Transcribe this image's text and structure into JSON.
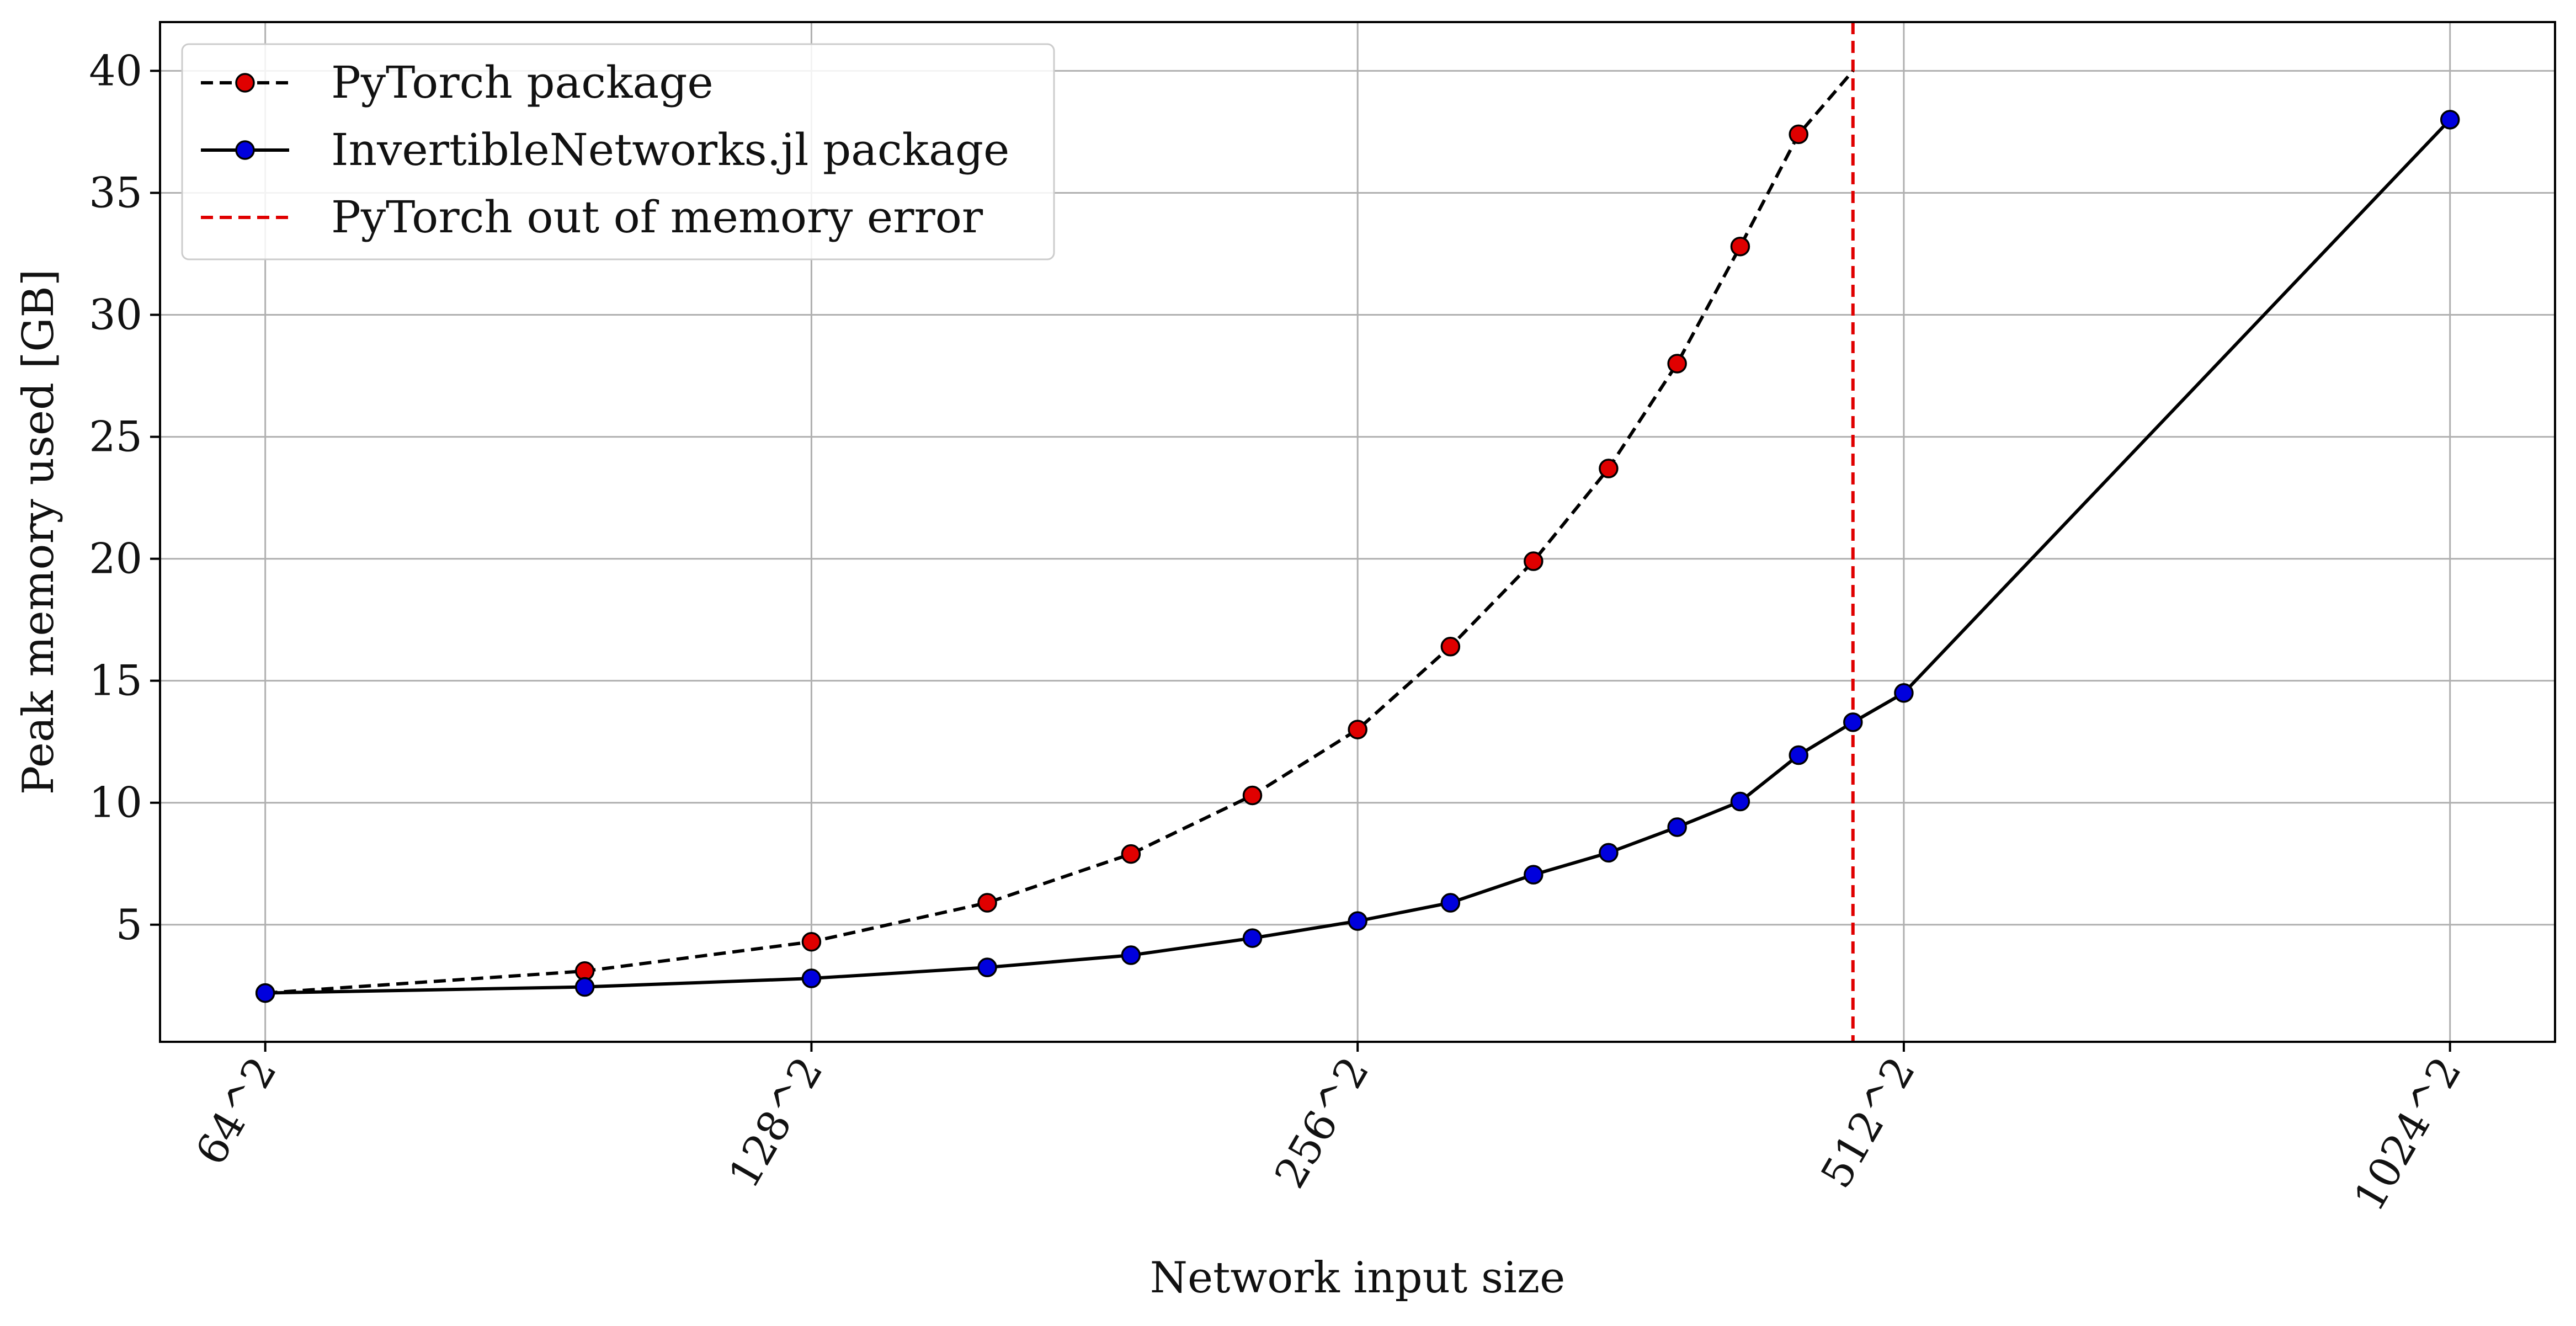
{
  "chart_data": {
    "type": "line",
    "title": "",
    "xlabel": "Network input size",
    "ylabel": "Peak memory used [GB]",
    "x_scale": "log2",
    "x_ticks": [
      {
        "value": 64,
        "label": "64^2"
      },
      {
        "value": 128,
        "label": "128^2"
      },
      {
        "value": 256,
        "label": "256^2"
      },
      {
        "value": 512,
        "label": "512^2"
      },
      {
        "value": 1024,
        "label": "1024^2"
      }
    ],
    "y_ticks": [
      5,
      10,
      15,
      20,
      25,
      30,
      35,
      40
    ],
    "ylim": [
      0.2,
      42
    ],
    "xlim": [
      56,
      1170
    ],
    "grid": true,
    "legend_position": "top-left",
    "series": [
      {
        "name": "PyTorch package",
        "line_style": "dashed",
        "line_color": "#000000",
        "marker_color": "#e00000",
        "points": [
          {
            "x": 64,
            "y": 2.2
          },
          {
            "x": 96,
            "y": 3.1
          },
          {
            "x": 128,
            "y": 4.3
          },
          {
            "x": 160,
            "y": 5.9
          },
          {
            "x": 192,
            "y": 7.9
          },
          {
            "x": 224,
            "y": 10.3
          },
          {
            "x": 256,
            "y": 13.0
          },
          {
            "x": 288,
            "y": 16.4
          },
          {
            "x": 320,
            "y": 19.9
          },
          {
            "x": 352,
            "y": 23.7
          },
          {
            "x": 384,
            "y": 28.0
          },
          {
            "x": 416,
            "y": 32.8
          },
          {
            "x": 448,
            "y": 37.4
          },
          {
            "x": 480,
            "y": 40.0,
            "marker": false
          }
        ]
      },
      {
        "name": "InvertibleNetworks.jl package",
        "line_style": "solid",
        "line_color": "#000000",
        "marker_color": "#0000dd",
        "points": [
          {
            "x": 64,
            "y": 2.2
          },
          {
            "x": 96,
            "y": 2.45
          },
          {
            "x": 128,
            "y": 2.8
          },
          {
            "x": 160,
            "y": 3.25
          },
          {
            "x": 192,
            "y": 3.75
          },
          {
            "x": 224,
            "y": 4.45
          },
          {
            "x": 256,
            "y": 5.15
          },
          {
            "x": 288,
            "y": 5.9
          },
          {
            "x": 320,
            "y": 7.05
          },
          {
            "x": 352,
            "y": 7.95
          },
          {
            "x": 384,
            "y": 9.0
          },
          {
            "x": 416,
            "y": 10.05
          },
          {
            "x": 448,
            "y": 11.95
          },
          {
            "x": 480,
            "y": 13.3
          },
          {
            "x": 512,
            "y": 14.5
          },
          {
            "x": 1024,
            "y": 38.0
          }
        ]
      }
    ],
    "vertical_lines": [
      {
        "name": "PyTorch out of memory error",
        "x": 480,
        "color": "#e00000",
        "line_style": "dashed"
      }
    ]
  }
}
